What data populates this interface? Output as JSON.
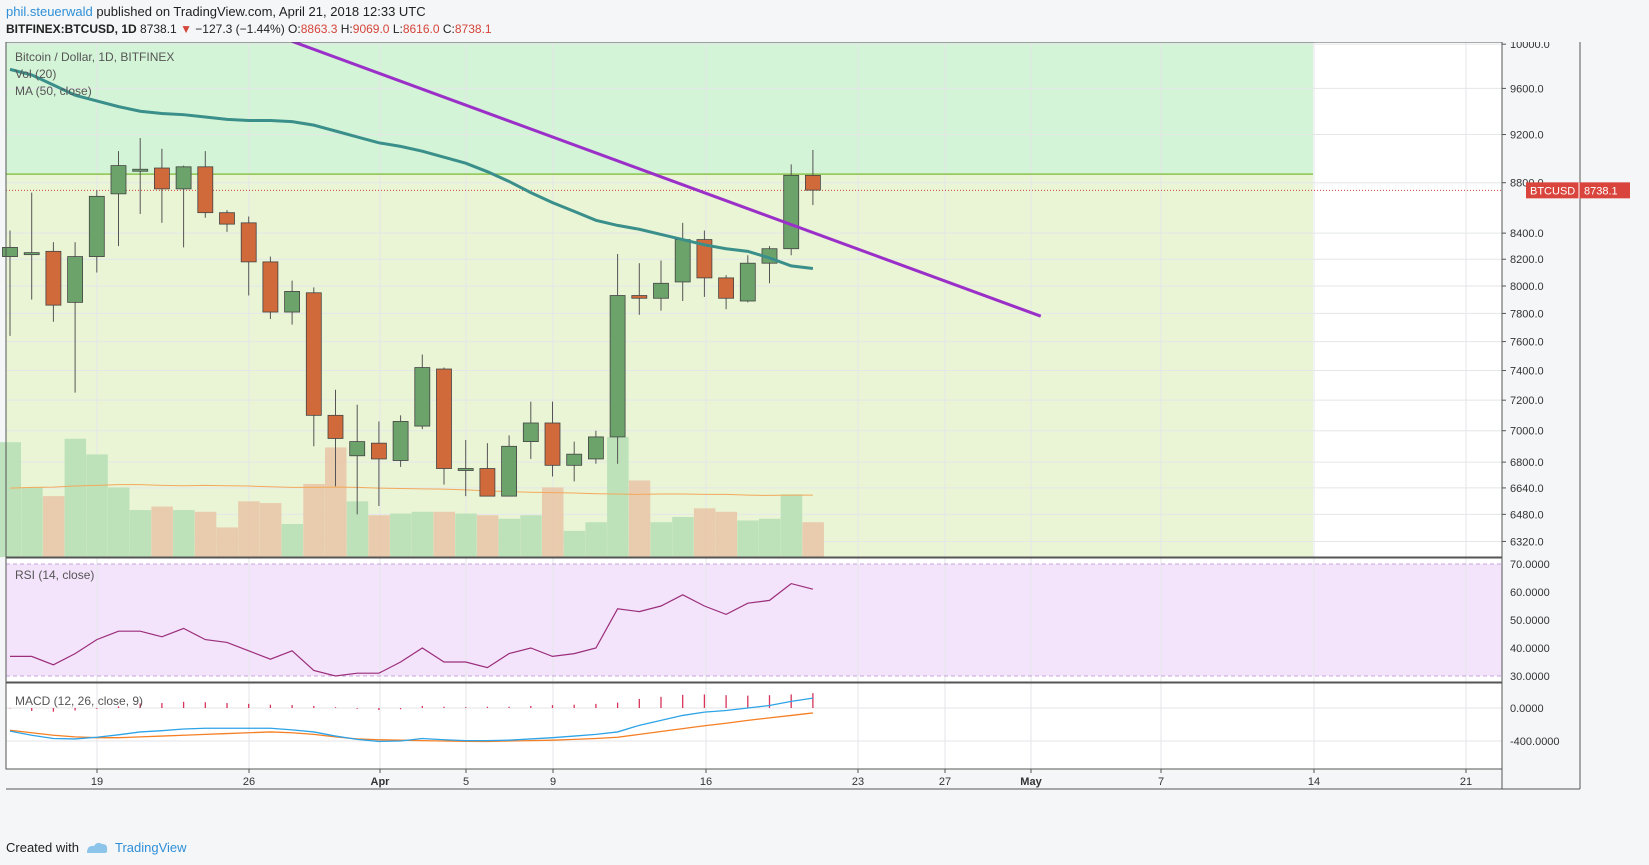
{
  "header": {
    "author": "phil.steuerwald",
    "published": " published on TradingView.com, April 21, 2018 12:33 UTC"
  },
  "ohlc": {
    "symbol": "BITFINEX:BTCUSD, 1D",
    "last": "8738.1",
    "arrow": "▼",
    "change": "−127.3 (−1.44%)",
    "o_label": "O:",
    "o": "8863.3",
    "h_label": "H:",
    "h": "9069.0",
    "l_label": "L:",
    "l": "8616.0",
    "c_label": "C:",
    "c": "8738.1"
  },
  "legend": {
    "title": "Bitcoin / Dollar, 1D, BITFINEX",
    "vol": "Vol (20)",
    "ma": "MA (50, close)",
    "rsi": "RSI (14, close)",
    "macd": "MACD (12, 26, close, 9)"
  },
  "price_tag": {
    "label": "BTCUSD",
    "value": "8738.1"
  },
  "footer": {
    "created": "Created with",
    "brand": "TradingView"
  },
  "colors": {
    "up": "#6ba36b",
    "down": "#d06a3b",
    "ma": "#3a8f8a",
    "trend": "#9b30c8",
    "rsi": "#9b2d7a",
    "macd": "#2ea3e6",
    "signal": "#f57f24",
    "hist": "#d8335a",
    "zone_upper": "#d4f4d7",
    "zone_lower": "#eaf5d6",
    "rsi_bg": "#f3e4fb",
    "ref_line": "#8bc34a",
    "last_line": "#d4453b"
  },
  "chart_data": {
    "type": "candlestick",
    "x_ticks": [
      "19",
      "26",
      "Apr",
      "5",
      "9",
      "16",
      "23",
      "27",
      "May",
      "7",
      "14",
      "21"
    ],
    "candles": [
      {
        "o": 8220,
        "h": 8420,
        "l": 7640,
        "c": 8290
      },
      {
        "o": 8250,
        "h": 8720,
        "l": 7900,
        "c": 8250
      },
      {
        "o": 8260,
        "h": 8330,
        "l": 7740,
        "c": 7860
      },
      {
        "o": 7880,
        "h": 8330,
        "l": 7250,
        "c": 8220
      },
      {
        "o": 8220,
        "h": 8740,
        "l": 8100,
        "c": 8690
      },
      {
        "o": 8710,
        "h": 9060,
        "l": 8300,
        "c": 8940
      },
      {
        "o": 8910,
        "h": 9170,
        "l": 8550,
        "c": 8910
      },
      {
        "o": 8920,
        "h": 9080,
        "l": 8480,
        "c": 8750
      },
      {
        "o": 8750,
        "h": 8940,
        "l": 8290,
        "c": 8930
      },
      {
        "o": 8930,
        "h": 9060,
        "l": 8520,
        "c": 8560
      },
      {
        "o": 8560,
        "h": 8580,
        "l": 8410,
        "c": 8470
      },
      {
        "o": 8480,
        "h": 8530,
        "l": 7930,
        "c": 8180
      },
      {
        "o": 8180,
        "h": 8220,
        "l": 7760,
        "c": 7810
      },
      {
        "o": 7810,
        "h": 8040,
        "l": 7720,
        "c": 7960
      },
      {
        "o": 7950,
        "h": 7990,
        "l": 6900,
        "c": 7100
      },
      {
        "o": 7100,
        "h": 7270,
        "l": 6650,
        "c": 6950
      },
      {
        "o": 6840,
        "h": 7170,
        "l": 6480,
        "c": 6930
      },
      {
        "o": 6920,
        "h": 7060,
        "l": 6530,
        "c": 6820
      },
      {
        "o": 6810,
        "h": 7100,
        "l": 6770,
        "c": 7060
      },
      {
        "o": 7030,
        "h": 7510,
        "l": 7010,
        "c": 7420
      },
      {
        "o": 7410,
        "h": 7420,
        "l": 6660,
        "c": 6760
      },
      {
        "o": 6760,
        "h": 6940,
        "l": 6590,
        "c": 6760
      },
      {
        "o": 6760,
        "h": 6920,
        "l": 6590,
        "c": 6590
      },
      {
        "o": 6590,
        "h": 6970,
        "l": 6590,
        "c": 6900
      },
      {
        "o": 6930,
        "h": 7190,
        "l": 6820,
        "c": 7050
      },
      {
        "o": 7050,
        "h": 7190,
        "l": 6710,
        "c": 6780
      },
      {
        "o": 6780,
        "h": 6930,
        "l": 6680,
        "c": 6850
      },
      {
        "o": 6820,
        "h": 7000,
        "l": 6790,
        "c": 6960
      },
      {
        "o": 6960,
        "h": 8240,
        "l": 6790,
        "c": 7930
      },
      {
        "o": 7930,
        "h": 8170,
        "l": 7790,
        "c": 7910
      },
      {
        "o": 7910,
        "h": 8190,
        "l": 7820,
        "c": 8020
      },
      {
        "o": 8030,
        "h": 8480,
        "l": 7890,
        "c": 8350
      },
      {
        "o": 8350,
        "h": 8420,
        "l": 7920,
        "c": 8060
      },
      {
        "o": 8060,
        "h": 8080,
        "l": 7830,
        "c": 7910
      },
      {
        "o": 7890,
        "h": 8230,
        "l": 7880,
        "c": 8170
      },
      {
        "o": 8170,
        "h": 8300,
        "l": 8020,
        "c": 8280
      },
      {
        "o": 8280,
        "h": 8950,
        "l": 8230,
        "c": 8860
      },
      {
        "o": 8860,
        "h": 9070,
        "l": 8620,
        "c": 8740
      }
    ],
    "volume": [
      330,
      200,
      175,
      340,
      295,
      200,
      135,
      145,
      135,
      130,
      85,
      160,
      155,
      95,
      210,
      315,
      160,
      120,
      125,
      130,
      130,
      125,
      120,
      110,
      120,
      200,
      75,
      100,
      345,
      220,
      100,
      115,
      140,
      130,
      105,
      110,
      180,
      100
    ],
    "vol_ma": [
      198,
      200,
      201,
      204,
      206,
      208,
      208,
      206,
      205,
      206,
      205,
      204,
      202,
      200,
      200,
      201,
      200,
      198,
      197,
      196,
      195,
      193,
      190,
      188,
      186,
      185,
      184,
      182,
      181,
      180,
      181,
      181,
      180,
      180,
      178,
      177,
      178,
      178
    ],
    "ma50": [
      9770,
      9720,
      9630,
      9540,
      9490,
      9440,
      9400,
      9380,
      9370,
      9350,
      9330,
      9320,
      9320,
      9310,
      9280,
      9230,
      9180,
      9130,
      9100,
      9060,
      9010,
      8960,
      8890,
      8810,
      8720,
      8640,
      8570,
      8500,
      8460,
      8430,
      8390,
      8350,
      8310,
      8280,
      8260,
      8210,
      8150,
      8130
    ],
    "trendline": {
      "x": [
        12,
        47.5
      ],
      "y": [
        10100,
        7780
      ]
    },
    "reference_level": 8870,
    "last_price": 8738.1,
    "price_axis": {
      "ticks": [
        6320,
        6480,
        6640,
        6800,
        7000,
        7200,
        7400,
        7600,
        7800,
        8000,
        8200,
        8400,
        8800,
        9200,
        9600,
        10000
      ],
      "labels": [
        "6320.0",
        "6480.0",
        "6640.0",
        "6800.0",
        "7000.0",
        "7200.0",
        "7400.0",
        "7600.0",
        "7800.0",
        "8000.0",
        "8200.0",
        "8400.0",
        "8800.0",
        "9200.0",
        "9600.0",
        "10000.0"
      ]
    },
    "rsi": [
      37,
      37,
      34,
      38,
      43,
      46,
      46,
      44,
      47,
      43,
      42,
      39,
      36,
      39,
      32,
      30,
      31,
      31,
      35,
      40,
      35,
      35,
      33,
      38,
      40,
      37,
      38,
      40,
      54,
      53,
      55,
      59,
      55,
      52,
      56,
      57,
      63,
      61
    ],
    "rsi_axis": {
      "ticks": [
        30,
        40,
        50,
        60,
        70
      ],
      "labels": [
        "30.0000",
        "40.0000",
        "50.0000",
        "60.0000",
        "70.0000"
      ]
    },
    "macd_line": [
      -280,
      -330,
      -370,
      -375,
      -355,
      -325,
      -290,
      -275,
      -255,
      -245,
      -245,
      -245,
      -245,
      -265,
      -290,
      -340,
      -380,
      -405,
      -400,
      -370,
      -385,
      -395,
      -395,
      -390,
      -375,
      -360,
      -340,
      -320,
      -290,
      -210,
      -150,
      -90,
      -50,
      -30,
      0,
      30,
      80,
      120
    ],
    "macd_signal": [
      -270,
      -300,
      -330,
      -350,
      -360,
      -360,
      -350,
      -340,
      -330,
      -320,
      -310,
      -300,
      -290,
      -300,
      -320,
      -350,
      -375,
      -385,
      -390,
      -395,
      -400,
      -405,
      -405,
      -400,
      -395,
      -390,
      -380,
      -370,
      -355,
      -320,
      -285,
      -250,
      -215,
      -185,
      -150,
      -120,
      -90,
      -60
    ],
    "macd_hist": [
      -5,
      -35,
      -45,
      -30,
      -10,
      20,
      55,
      60,
      75,
      70,
      60,
      50,
      40,
      35,
      25,
      10,
      -10,
      -25,
      -15,
      25,
      15,
      10,
      15,
      15,
      25,
      35,
      40,
      50,
      65,
      110,
      135,
      160,
      165,
      155,
      150,
      155,
      165,
      180
    ],
    "macd_axis": {
      "ticks": [
        0,
        -400
      ],
      "labels": [
        "0.0000",
        "-400.0000"
      ]
    }
  }
}
